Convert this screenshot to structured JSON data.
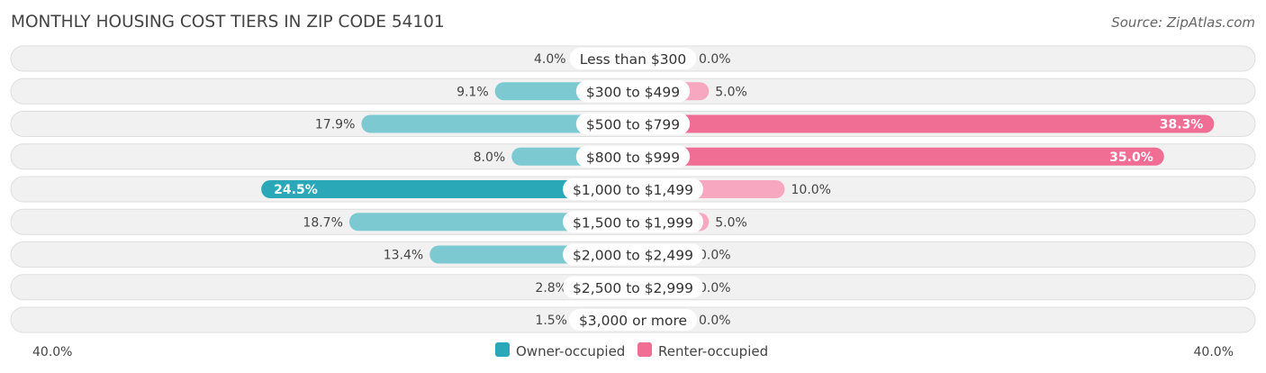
{
  "chart_data": {
    "type": "bar",
    "orientation": "diverging-horizontal",
    "title": "MONTHLY HOUSING COST TIERS IN ZIP CODE 54101",
    "source": "Source: ZipAtlas.com",
    "categories": [
      "Less than $300",
      "$300 to $499",
      "$500 to $799",
      "$800 to $999",
      "$1,000 to $1,499",
      "$1,500 to $1,999",
      "$2,000 to $2,499",
      "$2,500 to $2,999",
      "$3,000 or more"
    ],
    "series": [
      {
        "name": "Owner-occupied",
        "side": "left",
        "values": [
          4.0,
          9.1,
          17.9,
          8.0,
          24.5,
          18.7,
          13.4,
          2.8,
          1.5
        ],
        "labels": [
          "4.0%",
          "9.1%",
          "17.9%",
          "8.0%",
          "24.5%",
          "18.7%",
          "13.4%",
          "2.8%",
          "1.5%"
        ]
      },
      {
        "name": "Renter-occupied",
        "side": "right",
        "values": [
          0.0,
          5.0,
          38.3,
          35.0,
          10.0,
          5.0,
          0.0,
          0.0,
          0.0
        ],
        "labels": [
          "0.0%",
          "5.0%",
          "38.3%",
          "35.0%",
          "10.0%",
          "5.0%",
          "0.0%",
          "0.0%",
          "0.0%"
        ]
      }
    ],
    "axis": {
      "max": 40.0,
      "left_label": "40.0%",
      "right_label": "40.0%"
    },
    "legend_position": "bottom-center"
  },
  "colors": {
    "owner_light": "#7cc9d2",
    "owner_strong": "#2aa8b8",
    "renter_light": "#f7a8c0",
    "renter_strong": "#f06d93",
    "row_bg": "#f1f1f1",
    "row_border": "#dedede",
    "text": "#444444",
    "title": "#444444",
    "source": "#666666"
  }
}
